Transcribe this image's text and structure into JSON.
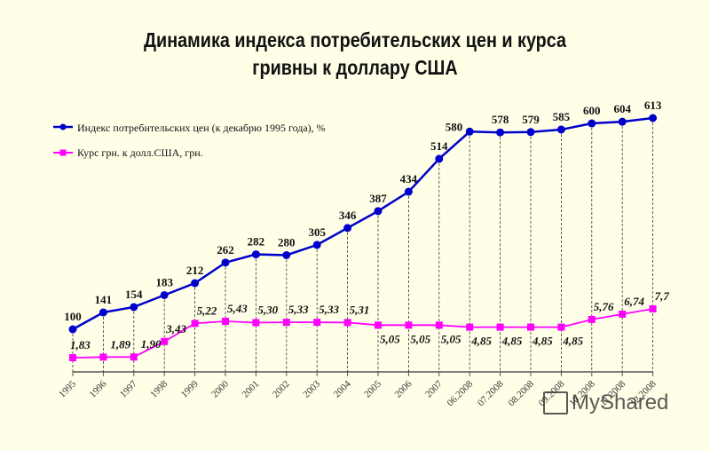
{
  "title": {
    "line1": "Динамика индекса потребительских цен и курса",
    "line2": "гривны к доллару США"
  },
  "legend": {
    "series1": "Индекс потребительских цен (к декабрю 1995 года), %",
    "series2": "Курс грн. к долл.США, грн."
  },
  "colors": {
    "cpi": "#0000CC",
    "fx": "#FF00FF",
    "background": "#FFFFE8"
  },
  "watermark": "MyShared",
  "chart_data": {
    "type": "line",
    "title": "Динамика индекса потребительских цен и курса гривны к доллару США",
    "xlabel": "",
    "ylabel": "",
    "categories": [
      "1995",
      "1996",
      "1997",
      "1998",
      "1999",
      "2000",
      "2001",
      "2002",
      "2003",
      "2004",
      "2005",
      "2006",
      "2007",
      "06.2008",
      "07.2008",
      "08.2008",
      "09.2008",
      "10.2008",
      "11.2008",
      "12.2008"
    ],
    "series": [
      {
        "name": "Индекс потребительских цен (к декабрю 1995 года), %",
        "color": "#0000CC",
        "marker": "circle",
        "values": [
          100,
          141,
          154,
          183,
          212,
          262,
          282,
          280,
          305,
          346,
          387,
          434,
          514,
          580,
          578,
          579,
          585,
          600,
          604,
          613
        ],
        "labels": [
          "100",
          "141",
          "154",
          "183",
          "212",
          "262",
          "282",
          "280",
          "305",
          "346",
          "387",
          "434",
          "514",
          "580",
          "578",
          "579",
          "585",
          "600",
          "604",
          "613"
        ]
      },
      {
        "name": "Курс грн. к долл.США, грн.",
        "color": "#FF00FF",
        "marker": "square",
        "values": [
          1.83,
          1.89,
          1.9,
          3.43,
          5.22,
          5.43,
          5.3,
          5.33,
          5.33,
          5.31,
          5.05,
          5.05,
          5.05,
          4.85,
          4.85,
          4.85,
          4.85,
          5.76,
          6.74,
          7.7
        ],
        "labels": [
          "1,83",
          "1,89",
          "1,90",
          "3,43",
          "5,22",
          "5,43",
          "5,30",
          "5,33",
          "5,33",
          "5,31",
          "5,05",
          "5,05",
          "5,05",
          "4,85",
          "4,85",
          "4,85",
          "4,85",
          "5,76",
          "6,74",
          "7,7"
        ]
      }
    ],
    "grid": false,
    "legend_position": "top-left"
  }
}
